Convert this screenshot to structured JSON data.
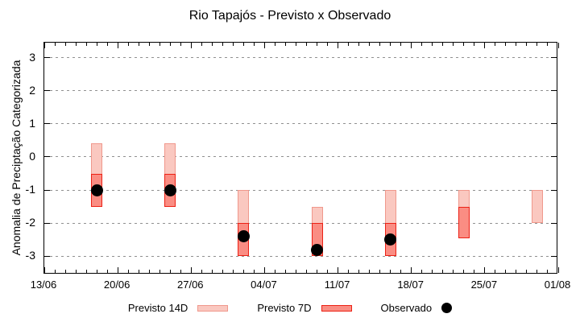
{
  "title": "Rio Tapajós - Previsto x Observado",
  "y_axis_label": "Anomalia de Preciptação Categorizada",
  "legend": {
    "previsto_14d": "Previsto 14D",
    "previsto_7d": "Previsto 7D",
    "observado": "Observado"
  },
  "colors": {
    "light_fill": "#fac8c0",
    "light_border": "#f0988c",
    "dark_fill": "#fa8d83",
    "dark_border": "#ec2115",
    "observed": "#000000",
    "grid": "#909090",
    "frame": "#000000"
  },
  "chart_data": {
    "type": "bar",
    "title": "Rio Tapajós - Previsto x Observado",
    "xlabel": "",
    "ylabel": "Anomalia de Preciptação Categorizada",
    "ylim": [
      -3.55,
      3.45
    ],
    "grid": "horizontal-dotted",
    "legend_position": "bottom-outside",
    "x_total_days": 49,
    "x_tick_interval_days": 7,
    "x_minor_tick_days": 1,
    "x_tick_labels": [
      "13/06",
      "20/06",
      "27/06",
      "04/07",
      "11/07",
      "18/07",
      "25/07",
      "01/08"
    ],
    "y_tick_values": [
      3,
      2,
      1,
      0,
      -1,
      -2,
      -3
    ],
    "series": [
      {
        "name": "Previsto 14D",
        "type": "range-bar",
        "style": "light",
        "points": [
          {
            "date": "18/06",
            "day": 5,
            "low": -1.5,
            "high": 0.4
          },
          {
            "date": "25/06",
            "day": 12,
            "low": -1.5,
            "high": 0.4
          },
          {
            "date": "02/07",
            "day": 19,
            "low": -3.0,
            "high": -1.0
          },
          {
            "date": "09/07",
            "day": 26,
            "low": -3.0,
            "high": -1.5
          },
          {
            "date": "16/07",
            "day": 33,
            "low": -3.0,
            "high": -1.0
          },
          {
            "date": "23/07",
            "day": 40,
            "low": -2.45,
            "high": -1.0
          },
          {
            "date": "30/07",
            "day": 47,
            "low": -2.0,
            "high": -1.0
          }
        ]
      },
      {
        "name": "Previsto 7D",
        "type": "range-bar",
        "style": "dark",
        "points": [
          {
            "date": "18/06",
            "day": 5,
            "low": -1.5,
            "high": -0.5
          },
          {
            "date": "25/06",
            "day": 12,
            "low": -1.5,
            "high": -0.5
          },
          {
            "date": "02/07",
            "day": 19,
            "low": -3.0,
            "high": -2.0
          },
          {
            "date": "09/07",
            "day": 26,
            "low": -3.0,
            "high": -2.0
          },
          {
            "date": "16/07",
            "day": 33,
            "low": -3.0,
            "high": -2.0
          },
          {
            "date": "23/07",
            "day": 40,
            "low": -2.45,
            "high": -1.5
          }
        ]
      },
      {
        "name": "Observado",
        "type": "scatter",
        "points": [
          {
            "date": "18/06",
            "day": 5,
            "value": -1.0
          },
          {
            "date": "25/06",
            "day": 12,
            "value": -1.0
          },
          {
            "date": "02/07",
            "day": 19,
            "value": -2.4
          },
          {
            "date": "09/07",
            "day": 26,
            "value": -2.8
          },
          {
            "date": "16/07",
            "day": 33,
            "value": -2.5
          }
        ]
      }
    ]
  }
}
